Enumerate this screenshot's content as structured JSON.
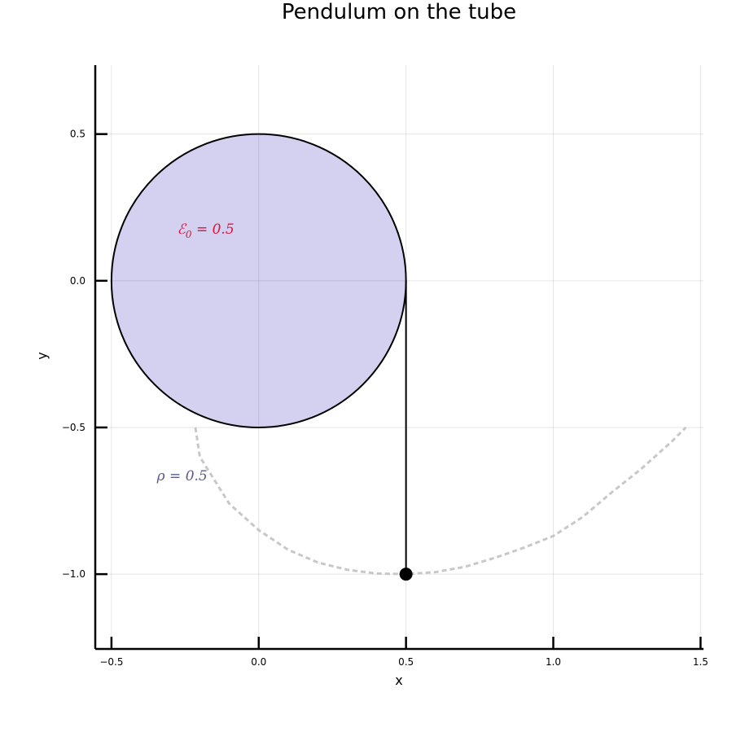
{
  "chart_data": {
    "type": "scatter",
    "title": "Pendulum on the tube",
    "xlabel": "x",
    "ylabel": "y",
    "xlim": [
      -0.555,
      1.51
    ],
    "ylim": [
      -1.255,
      0.735
    ],
    "xticks": [
      -0.5,
      0.0,
      0.5,
      1.0,
      1.5
    ],
    "xtick_labels": [
      "−0.5",
      "0.0",
      "0.5",
      "1.0",
      "1.5"
    ],
    "yticks": [
      -1.0,
      -0.5,
      0.0,
      0.5
    ],
    "ytick_labels": [
      "−1.0",
      "−0.5",
      "0.0",
      "0.5"
    ],
    "grid": true,
    "legend": "none",
    "colors": {
      "tube_fill": "#d3d0f0",
      "tube_stroke": "#000000",
      "rope": "#000000",
      "bob": "#000000",
      "path": "#c8c8c8",
      "energy_label": "#dc143c",
      "rho_label": "#5a5a8c"
    },
    "tube": {
      "center": [
        0.0,
        0.0
      ],
      "radius": 0.5
    },
    "rope": {
      "from": [
        0.5,
        0.0
      ],
      "to": [
        0.5,
        -1.0
      ]
    },
    "bob": {
      "x": 0.5,
      "y": -1.0
    },
    "trajectory": {
      "style": "dashed",
      "points": [
        [
          -0.215,
          -0.5
        ],
        [
          -0.2,
          -0.6
        ],
        [
          -0.1,
          -0.76
        ],
        [
          0.0,
          -0.85
        ],
        [
          0.1,
          -0.917
        ],
        [
          0.2,
          -0.96
        ],
        [
          0.3,
          -0.985
        ],
        [
          0.4,
          -0.998
        ],
        [
          0.5,
          -1.0
        ],
        [
          0.6,
          -0.993
        ],
        [
          0.7,
          -0.975
        ],
        [
          0.8,
          -0.945
        ],
        [
          0.9,
          -0.91
        ],
        [
          1.0,
          -0.87
        ],
        [
          1.1,
          -0.805
        ],
        [
          1.2,
          -0.72
        ],
        [
          1.3,
          -0.64
        ],
        [
          1.4,
          -0.55
        ],
        [
          1.45,
          -0.5
        ]
      ]
    },
    "annotations": [
      {
        "id": "energy",
        "x": -0.18,
        "y": 0.16,
        "base": "ℰ",
        "sub": "0",
        "rest": " = 0.5"
      },
      {
        "id": "rho",
        "x": -0.26,
        "y": -0.68,
        "base": "ρ",
        "sub": "",
        "rest": " = 0.5"
      }
    ]
  }
}
